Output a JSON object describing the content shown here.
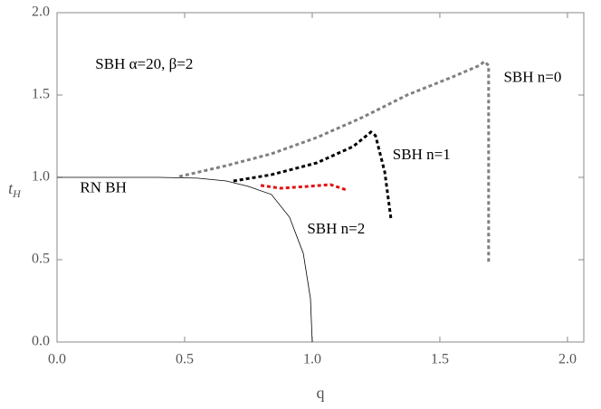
{
  "chart_data": {
    "type": "line",
    "x_label": "q",
    "y_label": "t",
    "y_label_sub": "H",
    "xlim": [
      0,
      2.064
    ],
    "ylim": [
      0,
      2.0
    ],
    "xticks": [
      {
        "value": 0,
        "label": "0.0"
      },
      {
        "value": 0.5,
        "label": "0.5"
      },
      {
        "value": 1,
        "label": "1.0"
      },
      {
        "value": 1.5,
        "label": "1.5"
      },
      {
        "value": 2,
        "label": "2.0"
      }
    ],
    "yticks": [
      {
        "value": 0,
        "label": "0.0"
      },
      {
        "value": 0.5,
        "label": "0.5"
      },
      {
        "value": 1,
        "label": "1.0"
      },
      {
        "value": 1.5,
        "label": "1.5"
      },
      {
        "value": 2,
        "label": "2.0"
      }
    ],
    "series": [
      {
        "name": "RN BH",
        "color": "#000000",
        "dashed": false,
        "x": [
          0,
          0.4,
          0.55,
          0.663,
          0.75,
          0.84,
          0.911,
          0.965,
          0.993,
          1.0
        ],
        "values": [
          1,
          1,
          0.995,
          0.978,
          0.945,
          0.896,
          0.758,
          0.538,
          0.264,
          0
        ]
      },
      {
        "name": "SBH n=0",
        "color": "#808080",
        "dashed": true,
        "x": [
          0.479,
          0.663,
          0.84,
          1.018,
          1.195,
          1.372,
          1.55,
          1.656,
          1.674,
          1.691,
          1.691
        ],
        "values": [
          1.005,
          1.071,
          1.143,
          1.242,
          1.363,
          1.5,
          1.61,
          1.68,
          1.703,
          1.68,
          0.484
        ]
      },
      {
        "name": "SBH n=1",
        "color": "#000000",
        "dashed": true,
        "x": [
          0.691,
          0.84,
          1.018,
          1.16,
          1.23,
          1.248,
          1.284,
          1.309
        ],
        "values": [
          0.978,
          1.016,
          1.088,
          1.187,
          1.275,
          1.253,
          1.033,
          0.742
        ]
      },
      {
        "name": "SBH n=2",
        "color": "#e01010",
        "dashed": true,
        "x": [
          0.798,
          0.876,
          0.982,
          1.071,
          1.135
        ],
        "values": [
          0.951,
          0.934,
          0.945,
          0.956,
          0.923
        ]
      }
    ],
    "annotations": [
      {
        "text": "SBH α=20, β=2",
        "x": 0.15,
        "y": 1.68
      },
      {
        "text": "SBH n=0",
        "x": 1.75,
        "y": 1.6
      },
      {
        "text": "SBH n=1",
        "x": 1.315,
        "y": 1.13
      },
      {
        "text": "RN BH",
        "x": 0.09,
        "y": 0.93
      },
      {
        "text": "SBH n=2",
        "x": 0.98,
        "y": 0.68
      }
    ]
  }
}
